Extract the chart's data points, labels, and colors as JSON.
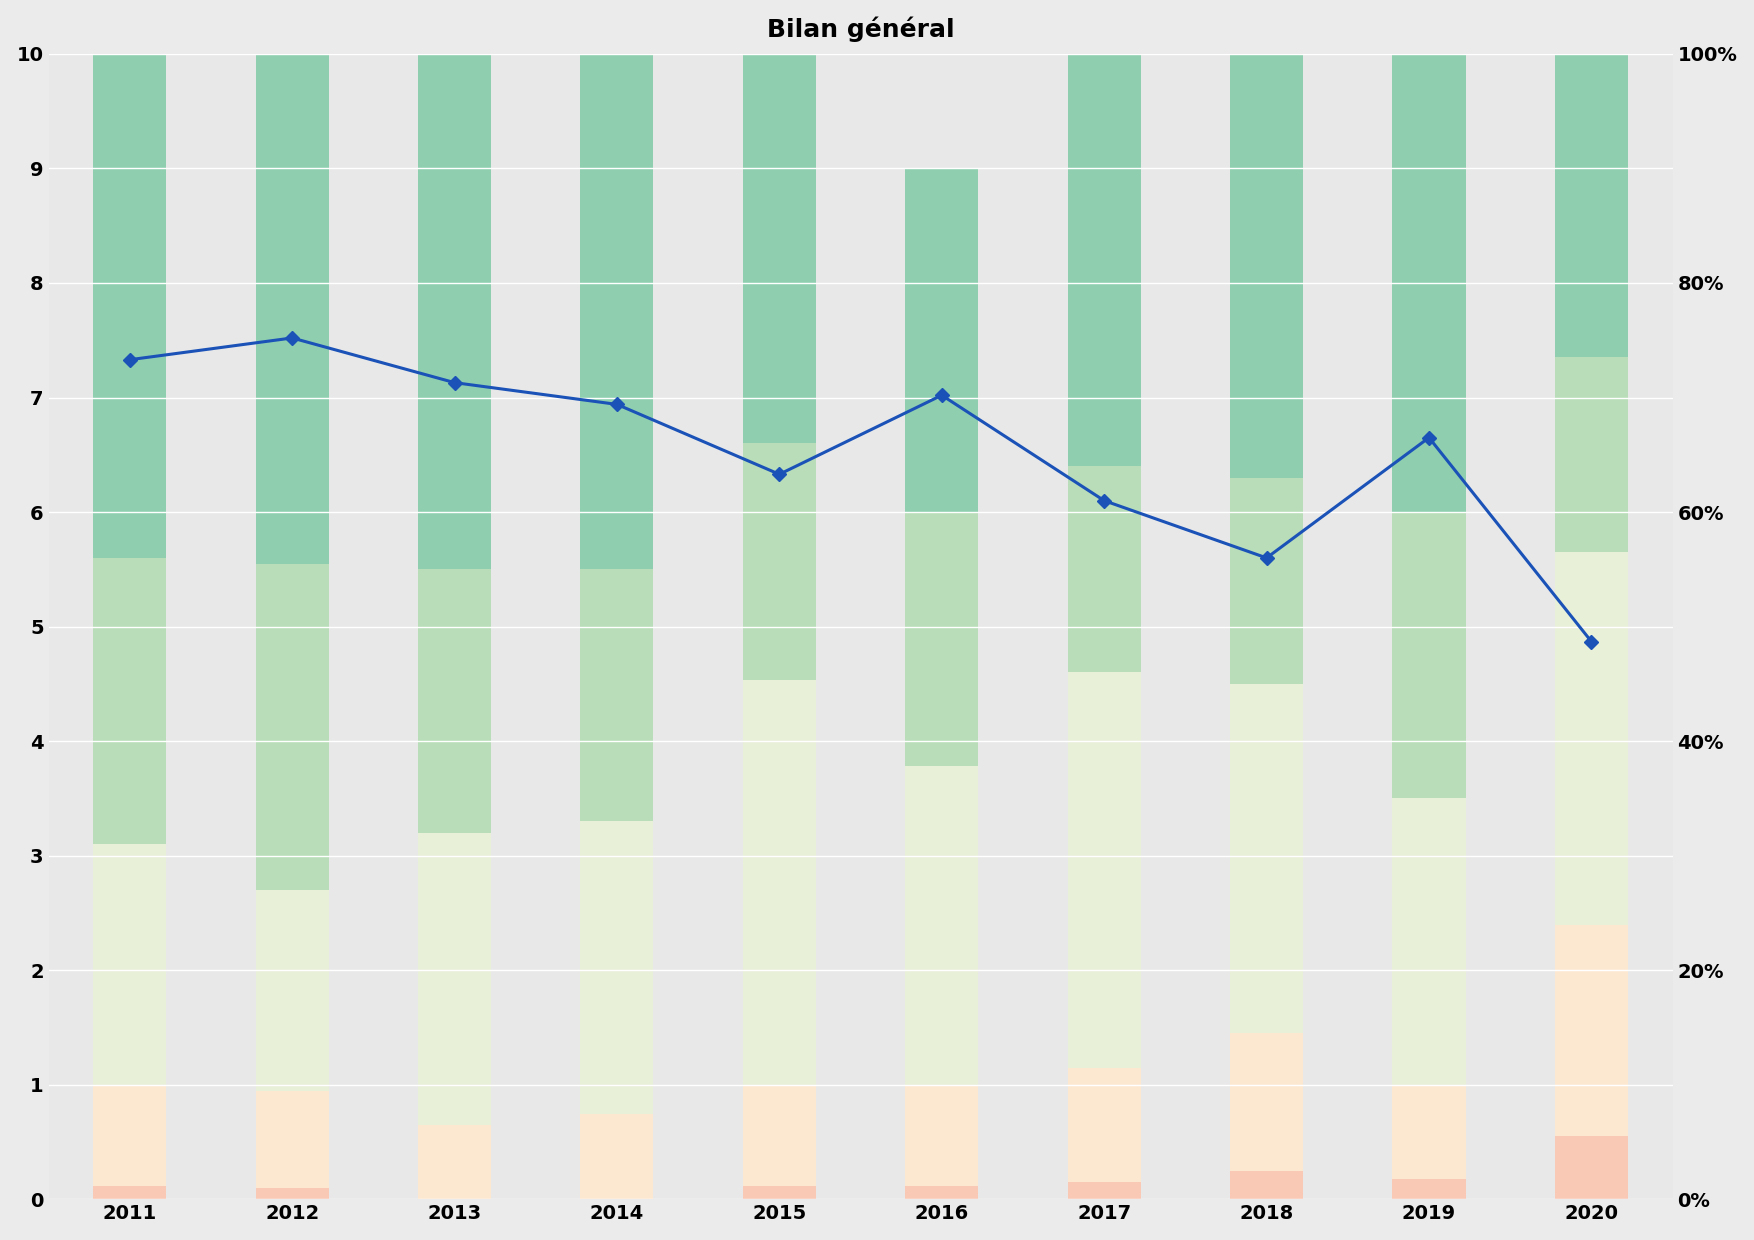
{
  "title": "Bilan général",
  "years": [
    2011,
    2012,
    2013,
    2014,
    2015,
    2016,
    2017,
    2018,
    2019,
    2020
  ],
  "line_values": [
    7.33,
    7.52,
    7.13,
    6.94,
    6.33,
    7.02,
    6.1,
    5.6,
    6.65,
    4.87
  ],
  "bar_segments": [
    [
      0.12,
      0.1,
      0.0,
      0.0,
      0.12,
      0.12,
      0.15,
      0.25,
      0.18,
      0.55
    ],
    [
      0.88,
      0.85,
      0.65,
      0.75,
      0.88,
      0.88,
      1.0,
      1.2,
      0.82,
      1.85
    ],
    [
      2.1,
      1.75,
      2.55,
      2.55,
      3.53,
      2.78,
      3.45,
      3.05,
      2.5,
      3.25
    ],
    [
      2.5,
      2.85,
      2.3,
      2.2,
      2.07,
      2.22,
      1.8,
      1.8,
      2.5,
      1.7
    ],
    [
      4.4,
      4.45,
      4.5,
      4.5,
      3.4,
      3.0,
      3.6,
      3.7,
      4.0,
      2.65
    ]
  ],
  "seg_colors": [
    "#f9c9b6",
    "#fce8d0",
    "#e8f0d8",
    "#b8ddb8",
    "#8fcfb0"
  ],
  "line_color": "#1a52b8",
  "bar_width": 0.45,
  "background_color": "#ebebeb",
  "plot_bg_color": "#e8e8e8",
  "grid_color": "#ffffff",
  "title_fontsize": 18,
  "tick_fontsize": 14,
  "ylim": [
    0,
    10
  ]
}
